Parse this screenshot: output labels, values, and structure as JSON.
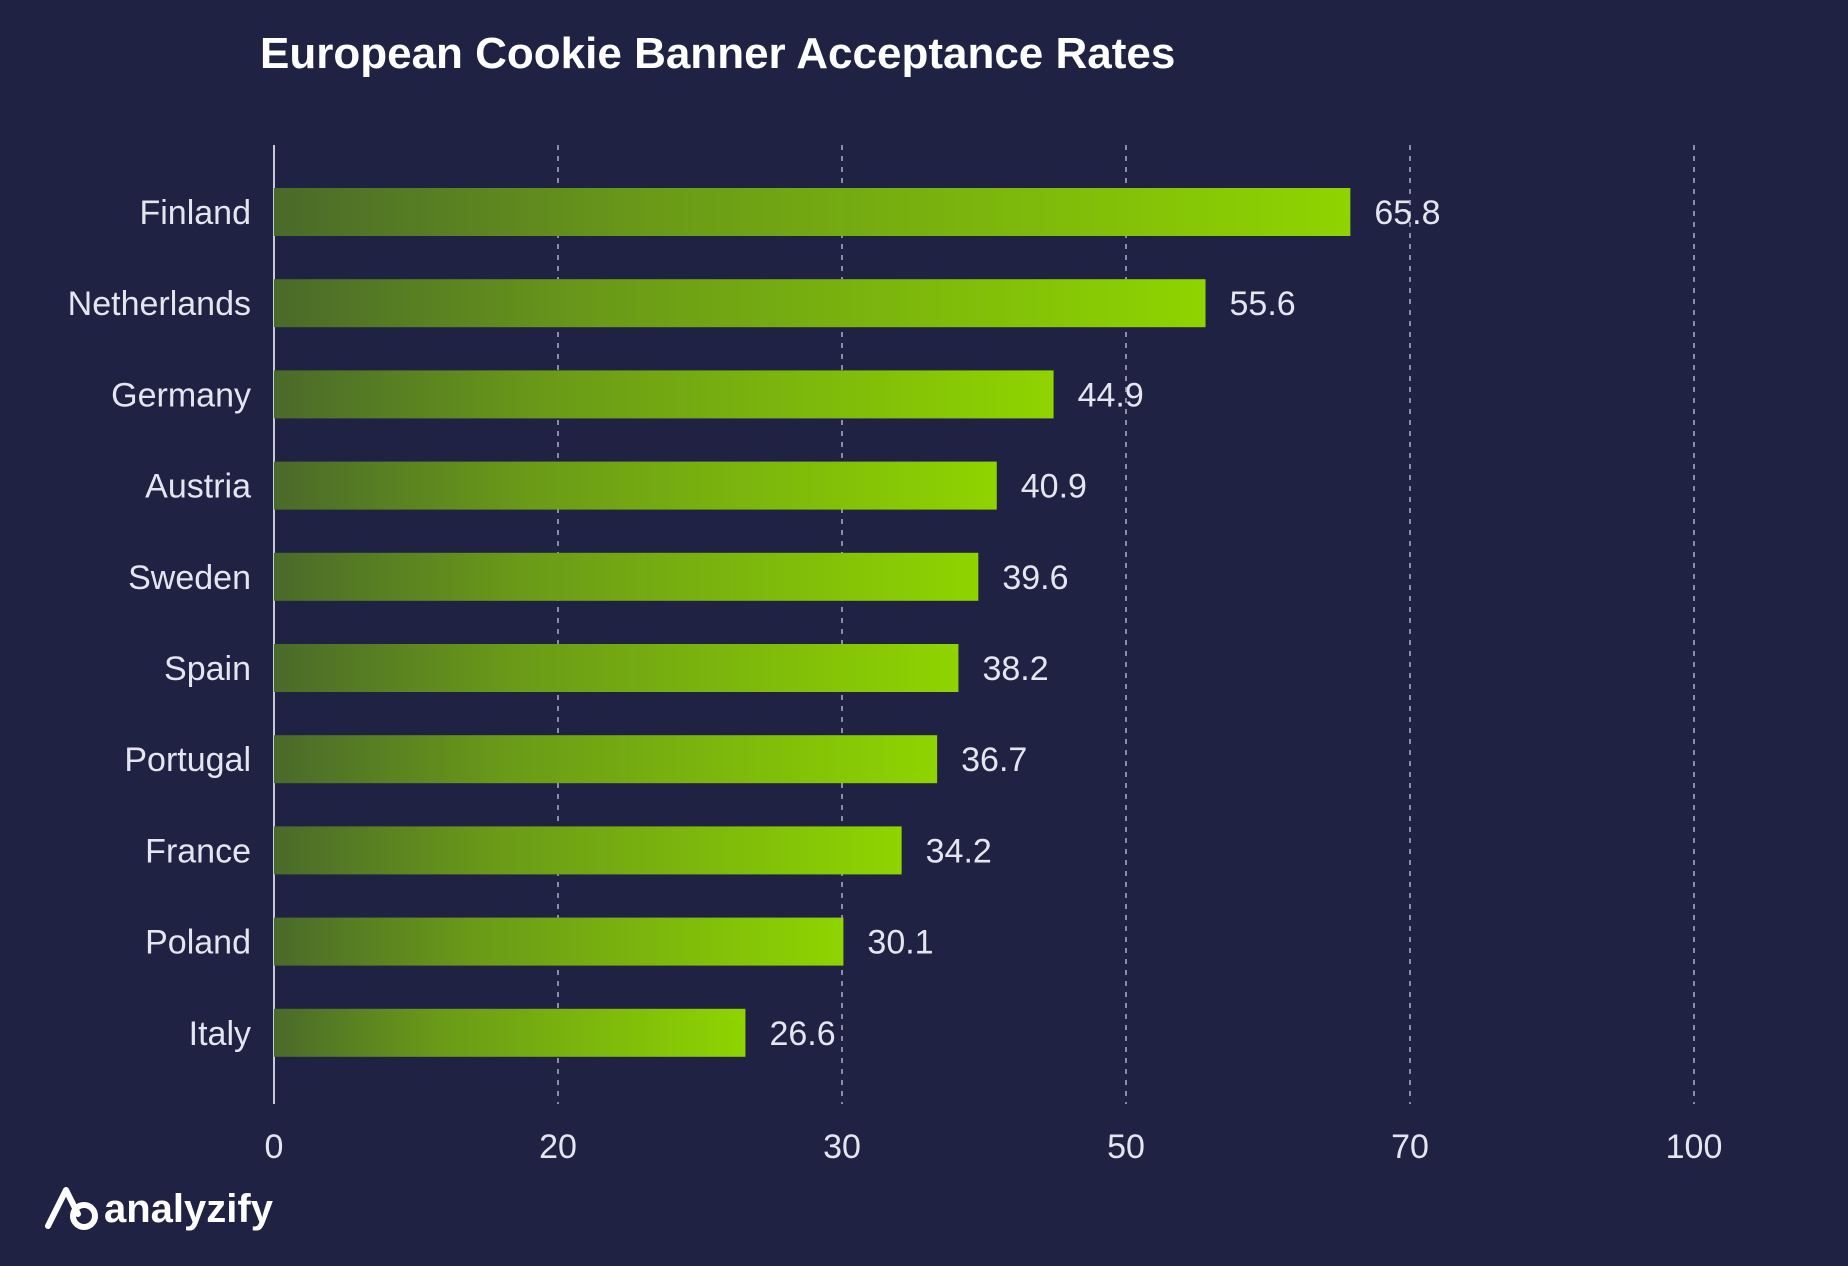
{
  "chart_data": {
    "type": "bar",
    "orientation": "horizontal",
    "title": "European Cookie Banner Acceptance Rates",
    "xlabel": "",
    "ylabel": "",
    "categories": [
      "Finland",
      "Netherlands",
      "Germany",
      "Austria",
      "Sweden",
      "Spain",
      "Portugal",
      "France",
      "Poland",
      "Italy"
    ],
    "values": [
      65.8,
      55.6,
      44.9,
      40.9,
      39.6,
      38.2,
      36.7,
      34.2,
      30.1,
      26.6
    ],
    "value_labels": [
      "65.8",
      "55.6",
      "44.9",
      "40.9",
      "39.6",
      "38.2",
      "36.7",
      "34.2",
      "30.1",
      "26.6"
    ],
    "xticks": [
      0,
      20,
      30,
      50,
      70,
      100
    ],
    "xtick_labels": [
      "0",
      "20",
      "30",
      "50",
      "70",
      "100"
    ],
    "grid": "vertical-dashed",
    "legend": "none"
  },
  "colors": {
    "background": "#202244",
    "bar_start": "#4a6a2a",
    "bar_end": "#8fd400",
    "grid": "#8a8ca6",
    "text": "#e4e6ef",
    "title": "#ffffff"
  },
  "brand": {
    "name": "analyzify",
    "icon": "analyzify-logo-icon"
  }
}
